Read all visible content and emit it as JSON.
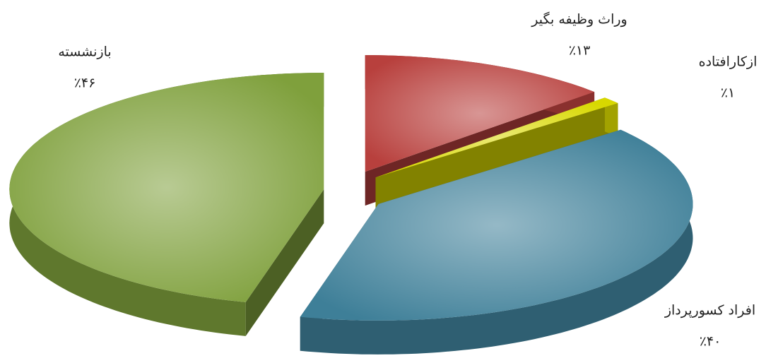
{
  "chart_data": {
    "type": "pie3d",
    "categories": [
      "وراث وظیفه بگیر",
      "ازکارافتاده",
      "افراد کسورپرداز",
      "بازنشسته"
    ],
    "values": [
      13,
      1,
      40,
      46
    ],
    "value_labels": [
      "٪۱۳",
      "٪۱",
      "٪۴۰",
      "٪۴۶"
    ],
    "colors": [
      "#b8403d",
      "#d8d800",
      "#3e7f98",
      "#7fa03c"
    ]
  }
}
